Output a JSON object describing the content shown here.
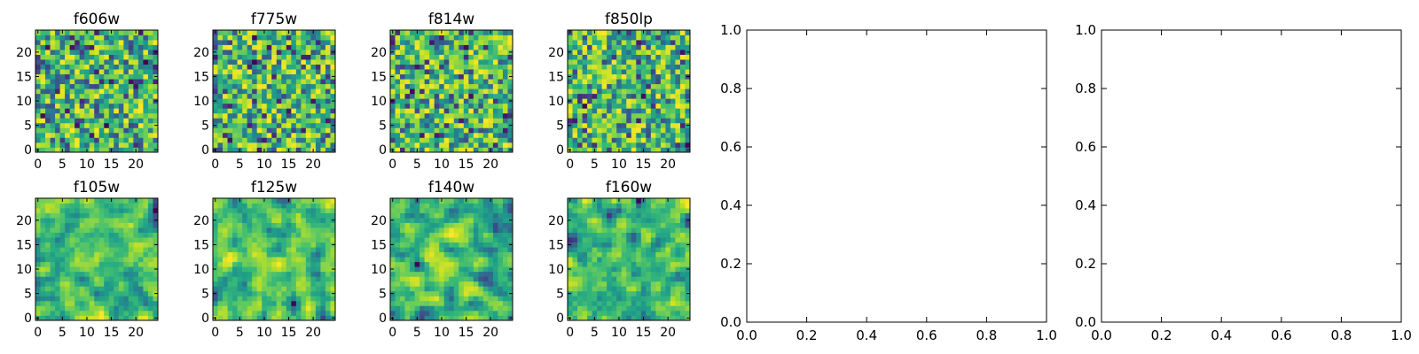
{
  "chart_data": [
    {
      "type": "heatmap",
      "title": "f606w",
      "x_ticks": [
        "0",
        "5",
        "10",
        "15",
        "20"
      ],
      "y_ticks": [
        "0",
        "5",
        "10",
        "15",
        "20"
      ],
      "xlim": [
        -0.5,
        24.5
      ],
      "ylim": [
        -0.5,
        24.5
      ],
      "grid_size": 25,
      "colormap": "viridis",
      "seed": 11,
      "smooth": 0
    },
    {
      "type": "heatmap",
      "title": "f775w",
      "x_ticks": [
        "0",
        "5",
        "10",
        "15",
        "20"
      ],
      "y_ticks": [
        "0",
        "5",
        "10",
        "15",
        "20"
      ],
      "xlim": [
        -0.5,
        24.5
      ],
      "ylim": [
        -0.5,
        24.5
      ],
      "grid_size": 25,
      "colormap": "viridis",
      "seed": 23,
      "smooth": 0
    },
    {
      "type": "heatmap",
      "title": "f814w",
      "x_ticks": [
        "0",
        "5",
        "10",
        "15",
        "20"
      ],
      "y_ticks": [
        "0",
        "5",
        "10",
        "15",
        "20"
      ],
      "xlim": [
        -0.5,
        24.5
      ],
      "ylim": [
        -0.5,
        24.5
      ],
      "grid_size": 25,
      "colormap": "viridis",
      "seed": 37,
      "smooth": 0
    },
    {
      "type": "heatmap",
      "title": "f850lp",
      "x_ticks": [
        "0",
        "5",
        "10",
        "15",
        "20"
      ],
      "y_ticks": [
        "0",
        "5",
        "10",
        "15",
        "20"
      ],
      "xlim": [
        -0.5,
        24.5
      ],
      "ylim": [
        -0.5,
        24.5
      ],
      "grid_size": 25,
      "colormap": "viridis",
      "seed": 41,
      "smooth": 0
    },
    {
      "type": "heatmap",
      "title": "f105w",
      "x_ticks": [
        "0",
        "5",
        "10",
        "15",
        "20"
      ],
      "y_ticks": [
        "0",
        "5",
        "10",
        "15",
        "20"
      ],
      "xlim": [
        -0.5,
        24.5
      ],
      "ylim": [
        -0.5,
        24.5
      ],
      "grid_size": 25,
      "colormap": "viridis",
      "seed": 53,
      "smooth": 1
    },
    {
      "type": "heatmap",
      "title": "f125w",
      "x_ticks": [
        "0",
        "5",
        "10",
        "15",
        "20"
      ],
      "y_ticks": [
        "0",
        "5",
        "10",
        "15",
        "20"
      ],
      "xlim": [
        -0.5,
        24.5
      ],
      "ylim": [
        -0.5,
        24.5
      ],
      "grid_size": 25,
      "colormap": "viridis",
      "seed": 67,
      "smooth": 1
    },
    {
      "type": "heatmap",
      "title": "f140w",
      "x_ticks": [
        "0",
        "5",
        "10",
        "15",
        "20"
      ],
      "y_ticks": [
        "0",
        "5",
        "10",
        "15",
        "20"
      ],
      "xlim": [
        -0.5,
        24.5
      ],
      "ylim": [
        -0.5,
        24.5
      ],
      "grid_size": 25,
      "colormap": "viridis",
      "seed": 71,
      "smooth": 1
    },
    {
      "type": "heatmap",
      "title": "f160w",
      "x_ticks": [
        "0",
        "5",
        "10",
        "15",
        "20"
      ],
      "y_ticks": [
        "0",
        "5",
        "10",
        "15",
        "20"
      ],
      "xlim": [
        -0.5,
        24.5
      ],
      "ylim": [
        -0.5,
        24.5
      ],
      "grid_size": 25,
      "colormap": "viridis",
      "seed": 89,
      "smooth": 1
    },
    {
      "type": "line",
      "title": "",
      "series": [],
      "xlim": [
        0.0,
        1.0
      ],
      "ylim": [
        0.0,
        1.0
      ],
      "x_ticks": [
        "0.0",
        "0.2",
        "0.4",
        "0.6",
        "0.8",
        "1.0"
      ],
      "y_ticks": [
        "0.0",
        "0.2",
        "0.4",
        "0.6",
        "0.8",
        "1.0"
      ]
    },
    {
      "type": "line",
      "title": "",
      "series": [],
      "xlim": [
        0.0,
        1.0
      ],
      "ylim": [
        0.0,
        1.0
      ],
      "x_ticks": [
        "0.0",
        "0.2",
        "0.4",
        "0.6",
        "0.8",
        "1.0"
      ],
      "y_ticks": [
        "0.0",
        "0.2",
        "0.4",
        "0.6",
        "0.8",
        "1.0"
      ]
    }
  ]
}
